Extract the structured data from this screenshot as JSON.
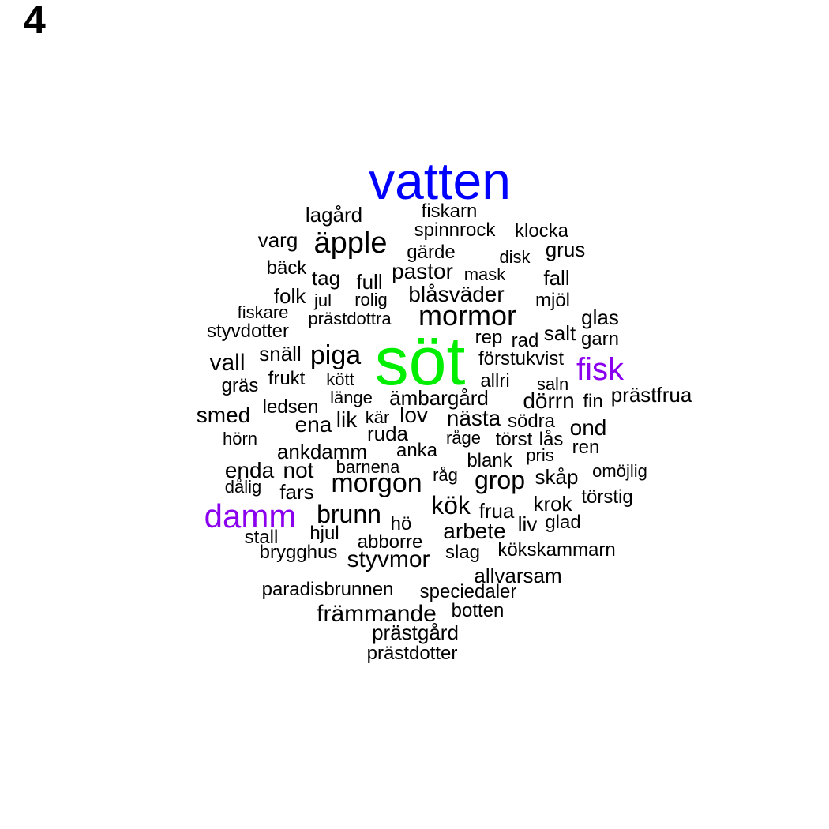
{
  "panel": {
    "label": "4"
  },
  "colors": {
    "default": "#000000",
    "vatten": "#0000ff",
    "sot": "#00ee00",
    "purple": "#8a00ee"
  },
  "words": [
    {
      "text": "vatten",
      "color": "#0000ff"
    },
    {
      "text": "söt",
      "color": "#00ee00"
    },
    {
      "text": "fisk",
      "color": "#8a00ee"
    },
    {
      "text": "damm",
      "color": "#8a00ee"
    },
    {
      "text": "lagård"
    },
    {
      "text": "fiskarn"
    },
    {
      "text": "spinnrock"
    },
    {
      "text": "klocka"
    },
    {
      "text": "varg"
    },
    {
      "text": "äpple"
    },
    {
      "text": "gärde"
    },
    {
      "text": "disk"
    },
    {
      "text": "grus"
    },
    {
      "text": "bäck"
    },
    {
      "text": "tag"
    },
    {
      "text": "full"
    },
    {
      "text": "pastor"
    },
    {
      "text": "mask"
    },
    {
      "text": "fall"
    },
    {
      "text": "folk"
    },
    {
      "text": "jul"
    },
    {
      "text": "rolig"
    },
    {
      "text": "blåsväder"
    },
    {
      "text": "mjöl"
    },
    {
      "text": "fiskare"
    },
    {
      "text": "prästdottra"
    },
    {
      "text": "mormor"
    },
    {
      "text": "glas"
    },
    {
      "text": "styvdotter"
    },
    {
      "text": "rep"
    },
    {
      "text": "rad"
    },
    {
      "text": "salt"
    },
    {
      "text": "garn"
    },
    {
      "text": "snäll"
    },
    {
      "text": "piga"
    },
    {
      "text": "vall"
    },
    {
      "text": "förstukvist"
    },
    {
      "text": "frukt"
    },
    {
      "text": "kött"
    },
    {
      "text": "allri"
    },
    {
      "text": "gräs"
    },
    {
      "text": "saln"
    },
    {
      "text": "prästfrua"
    },
    {
      "text": "länge"
    },
    {
      "text": "ämbargård"
    },
    {
      "text": "dörrn"
    },
    {
      "text": "fin"
    },
    {
      "text": "ledsen"
    },
    {
      "text": "smed"
    },
    {
      "text": "lik"
    },
    {
      "text": "kär"
    },
    {
      "text": "lov"
    },
    {
      "text": "nästa"
    },
    {
      "text": "södra"
    },
    {
      "text": "ena"
    },
    {
      "text": "ond"
    },
    {
      "text": "ruda"
    },
    {
      "text": "hörn"
    },
    {
      "text": "råge"
    },
    {
      "text": "törst"
    },
    {
      "text": "lås"
    },
    {
      "text": "ankdamm"
    },
    {
      "text": "anka"
    },
    {
      "text": "ren"
    },
    {
      "text": "pris"
    },
    {
      "text": "barnena"
    },
    {
      "text": "blank"
    },
    {
      "text": "enda"
    },
    {
      "text": "not"
    },
    {
      "text": "omöjlig"
    },
    {
      "text": "råg"
    },
    {
      "text": "grop"
    },
    {
      "text": "skåp"
    },
    {
      "text": "dålig"
    },
    {
      "text": "morgon"
    },
    {
      "text": "fars"
    },
    {
      "text": "törstig"
    },
    {
      "text": "krok"
    },
    {
      "text": "kök"
    },
    {
      "text": "frua"
    },
    {
      "text": "brunn"
    },
    {
      "text": "glad"
    },
    {
      "text": "liv"
    },
    {
      "text": "hö"
    },
    {
      "text": "arbete"
    },
    {
      "text": "stall"
    },
    {
      "text": "hjul"
    },
    {
      "text": "abborre"
    },
    {
      "text": "kökskammarn"
    },
    {
      "text": "brygghus"
    },
    {
      "text": "slag"
    },
    {
      "text": "styvmor"
    },
    {
      "text": "allvarsam"
    },
    {
      "text": "paradisbrunnen"
    },
    {
      "text": "speciedaler"
    },
    {
      "text": "främmande"
    },
    {
      "text": "botten"
    },
    {
      "text": "prästgård"
    },
    {
      "text": "prästdotter"
    }
  ]
}
